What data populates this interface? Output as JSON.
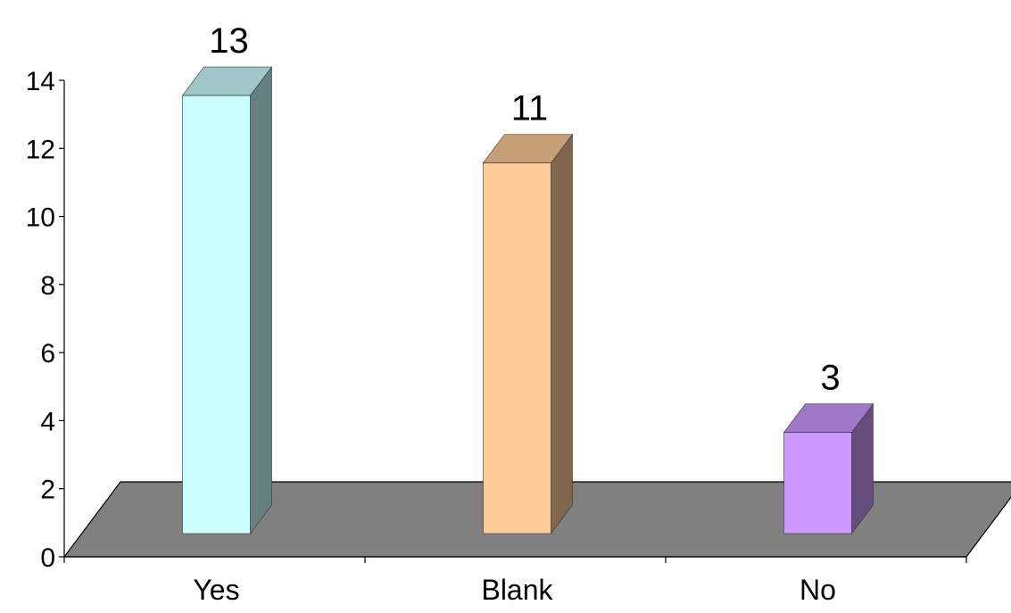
{
  "chart_data": {
    "type": "bar",
    "style": "3d-column",
    "categories": [
      "Yes",
      "Blank",
      "No"
    ],
    "values": [
      13,
      11,
      3
    ],
    "data_labels": [
      "13",
      "11",
      "3"
    ],
    "colors": [
      "#CCFFFF",
      "#FFCC99",
      "#CC99FF"
    ],
    "floor_color": "#808080",
    "ylim": [
      0,
      14
    ],
    "y_ticks": [
      "0",
      "2",
      "4",
      "6",
      "8",
      "10",
      "12",
      "14"
    ],
    "grid": false,
    "legend": "none"
  }
}
